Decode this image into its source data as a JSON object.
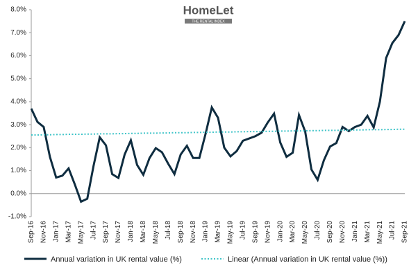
{
  "logo": {
    "brand": "HomeLet",
    "tagline": "THE RENTAL INDEX"
  },
  "chart_data": {
    "type": "line",
    "categories": [
      "Sep-16",
      null,
      "Nov-16",
      null,
      "Jan-17",
      null,
      "Mar-17",
      null,
      "May-17",
      null,
      "Jul-17",
      null,
      "Sep-17",
      null,
      "Nov-17",
      null,
      "Jan-18",
      null,
      "Mar-18",
      null,
      "May-18",
      null,
      "Jul-18",
      null,
      "Sep-18",
      null,
      "Nov-18",
      null,
      "Jan-19",
      null,
      "Mar-19",
      null,
      "May-19",
      null,
      "Jul-19",
      null,
      "Sep-19",
      null,
      "Nov-19",
      null,
      "Jan-20",
      null,
      "Mar-20",
      null,
      "May-20",
      null,
      "Jul-20",
      null,
      "Sep-20",
      null,
      "Nov-20",
      null,
      "Jan-21",
      null,
      "Mar-21",
      null,
      "May-21",
      null,
      "Jul-21",
      null,
      "Sep-21"
    ],
    "series": [
      {
        "name": "Annual variation in UK rental value (%)",
        "color": "#0f2d40",
        "style": "solid",
        "values": [
          3.7,
          3.12,
          2.9,
          1.6,
          0.7,
          0.78,
          1.1,
          0.4,
          -0.35,
          -0.22,
          1.2,
          2.45,
          2.1,
          0.85,
          0.68,
          1.7,
          2.32,
          1.25,
          0.82,
          1.55,
          1.98,
          1.8,
          1.3,
          0.85,
          1.7,
          2.08,
          1.55,
          1.55,
          2.6,
          3.75,
          3.3,
          2.0,
          1.62,
          1.85,
          2.3,
          2.4,
          2.5,
          2.65,
          3.1,
          3.48,
          2.22,
          1.6,
          1.78,
          3.42,
          2.7,
          1.05,
          0.6,
          1.45,
          2.05,
          2.2,
          2.9,
          2.72,
          2.9,
          3.0,
          3.38,
          2.88,
          4.0,
          5.9,
          6.55,
          6.9,
          7.5
        ]
      },
      {
        "name": "Linear (Annual variation in UK rental value (%))",
        "color": "#3fc4c8",
        "style": "dotted",
        "values": [
          2.55,
          2.55,
          2.56,
          2.56,
          2.57,
          2.57,
          2.58,
          2.58,
          2.58,
          2.59,
          2.59,
          2.6,
          2.6,
          2.6,
          2.61,
          2.61,
          2.62,
          2.62,
          2.63,
          2.63,
          2.63,
          2.64,
          2.64,
          2.65,
          2.65,
          2.65,
          2.66,
          2.66,
          2.67,
          2.67,
          2.68,
          2.68,
          2.68,
          2.69,
          2.69,
          2.7,
          2.7,
          2.7,
          2.71,
          2.71,
          2.72,
          2.72,
          2.73,
          2.73,
          2.73,
          2.74,
          2.74,
          2.75,
          2.75,
          2.75,
          2.76,
          2.76,
          2.77,
          2.77,
          2.78,
          2.78,
          2.78,
          2.79,
          2.79,
          2.8,
          2.8
        ]
      }
    ],
    "ylim": [
      -1,
      8
    ],
    "yticks": [
      {
        "value": -1,
        "label": "-1.0%"
      },
      {
        "value": 0,
        "label": "0.0%"
      },
      {
        "value": 1,
        "label": "1.0%"
      },
      {
        "value": 2,
        "label": "2.0%"
      },
      {
        "value": 3,
        "label": "3.0%"
      },
      {
        "value": 4,
        "label": "4.0%"
      },
      {
        "value": 5,
        "label": "5.0%"
      },
      {
        "value": 6,
        "label": "6.0%"
      },
      {
        "value": 7,
        "label": "7.0%"
      },
      {
        "value": 8,
        "label": "8.0%"
      }
    ],
    "legend": "bottom"
  }
}
